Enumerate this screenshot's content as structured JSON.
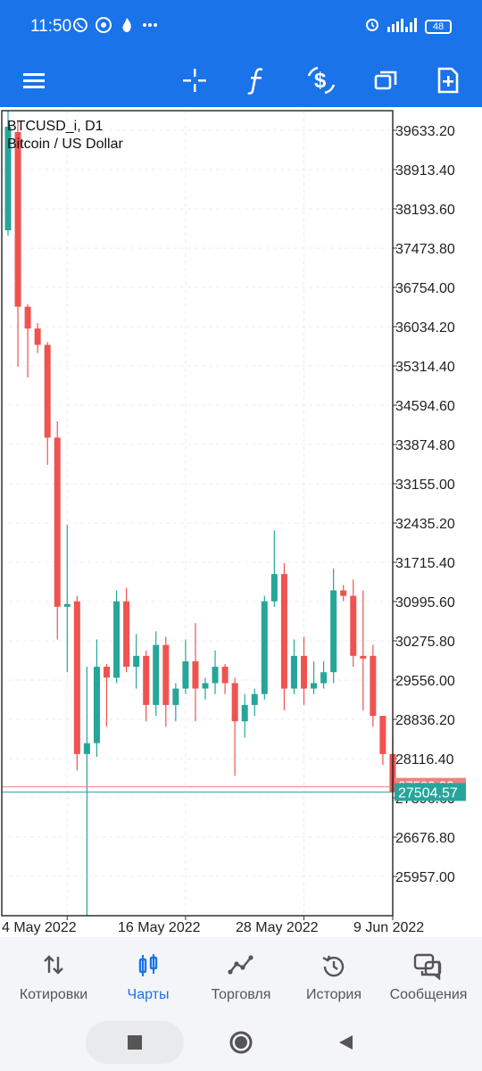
{
  "status_bar": {
    "time": "11:50",
    "battery": "48",
    "icons": [
      "viber-icon",
      "chrome-icon",
      "flame-icon",
      "more-dots-icon",
      "alarm-icon",
      "signal-icon",
      "battery-icon"
    ]
  },
  "toolbar": {
    "icons": [
      "menu-icon",
      "crosshair-icon",
      "indicators-f-icon",
      "trade-dollar-icon",
      "windows-icon",
      "new-order-icon"
    ]
  },
  "chart": {
    "symbol": "BTCUSD_i, D1",
    "description": "Bitcoin / US Dollar",
    "current_price": "27504.57",
    "bid_line_label": "27599.33"
  },
  "chart_data": {
    "type": "candlestick",
    "title": "BTCUSD_i, D1",
    "subtitle": "Bitcoin / US Dollar",
    "y_ticks": [
      "39633.20",
      "38913.40",
      "38193.60",
      "37473.80",
      "36754.00",
      "36034.20",
      "35314.40",
      "34594.60",
      "33874.80",
      "33155.00",
      "32435.20",
      "31715.40",
      "30995.60",
      "30275.80",
      "29556.00",
      "28836.20",
      "28116.40",
      "27396.60",
      "26676.80",
      "25957.00"
    ],
    "x_ticks": [
      "4 May 2022",
      "16 May 2022",
      "28 May 2022",
      "9 Jun 2022"
    ],
    "ylim": [
      25500,
      39950
    ],
    "candles": [
      {
        "o": 37800,
        "h": 40000,
        "l": 37700,
        "c": 39700
      },
      {
        "o": 39600,
        "h": 39800,
        "l": 35300,
        "c": 36400
      },
      {
        "o": 36400,
        "h": 36450,
        "l": 35100,
        "c": 36000
      },
      {
        "o": 36000,
        "h": 36100,
        "l": 35550,
        "c": 35700
      },
      {
        "o": 35700,
        "h": 35750,
        "l": 33500,
        "c": 34000
      },
      {
        "o": 34000,
        "h": 34300,
        "l": 30300,
        "c": 30900
      },
      {
        "o": 30900,
        "h": 32400,
        "l": 29700,
        "c": 30950
      },
      {
        "o": 31000,
        "h": 31100,
        "l": 27900,
        "c": 28200
      },
      {
        "o": 28200,
        "h": 29800,
        "l": 25200,
        "c": 28400
      },
      {
        "o": 28400,
        "h": 30300,
        "l": 28150,
        "c": 29800
      },
      {
        "o": 29800,
        "h": 29850,
        "l": 28700,
        "c": 29600
      },
      {
        "o": 29600,
        "h": 31200,
        "l": 29500,
        "c": 31000
      },
      {
        "o": 31000,
        "h": 31250,
        "l": 29700,
        "c": 29800
      },
      {
        "o": 29800,
        "h": 30400,
        "l": 29400,
        "c": 30000
      },
      {
        "o": 30000,
        "h": 30100,
        "l": 28800,
        "c": 29100
      },
      {
        "o": 29100,
        "h": 30450,
        "l": 28900,
        "c": 30200
      },
      {
        "o": 30200,
        "h": 30350,
        "l": 28700,
        "c": 29100
      },
      {
        "o": 29100,
        "h": 29500,
        "l": 28800,
        "c": 29400
      },
      {
        "o": 29400,
        "h": 30300,
        "l": 29300,
        "c": 29900
      },
      {
        "o": 29900,
        "h": 30600,
        "l": 28800,
        "c": 29400
      },
      {
        "o": 29400,
        "h": 29600,
        "l": 29200,
        "c": 29500
      },
      {
        "o": 29500,
        "h": 30100,
        "l": 29300,
        "c": 29800
      },
      {
        "o": 29800,
        "h": 29850,
        "l": 29300,
        "c": 29500
      },
      {
        "o": 29500,
        "h": 29600,
        "l": 27800,
        "c": 28800
      },
      {
        "o": 28800,
        "h": 29300,
        "l": 28500,
        "c": 29100
      },
      {
        "o": 29100,
        "h": 29400,
        "l": 28900,
        "c": 29300
      },
      {
        "o": 29300,
        "h": 31100,
        "l": 29200,
        "c": 31000
      },
      {
        "o": 31000,
        "h": 32300,
        "l": 30900,
        "c": 31500
      },
      {
        "o": 31500,
        "h": 31700,
        "l": 29000,
        "c": 29400
      },
      {
        "o": 29400,
        "h": 30300,
        "l": 29300,
        "c": 30000
      },
      {
        "o": 30000,
        "h": 30350,
        "l": 29100,
        "c": 29400
      },
      {
        "o": 29400,
        "h": 29900,
        "l": 29300,
        "c": 29500
      },
      {
        "o": 29500,
        "h": 29900,
        "l": 29400,
        "c": 29700
      },
      {
        "o": 29700,
        "h": 31600,
        "l": 29500,
        "c": 31200
      },
      {
        "o": 31200,
        "h": 31300,
        "l": 31000,
        "c": 31100
      },
      {
        "o": 31100,
        "h": 31400,
        "l": 29800,
        "c": 30000
      },
      {
        "o": 30000,
        "h": 31200,
        "l": 29000,
        "c": 29950
      },
      {
        "o": 30000,
        "h": 30200,
        "l": 28700,
        "c": 28900
      },
      {
        "o": 28900,
        "h": 28900,
        "l": 28000,
        "c": 28200
      },
      {
        "o": 28200,
        "h": 28500,
        "l": 27300,
        "c": 27500
      }
    ]
  },
  "bottom_nav": [
    {
      "label": "Котировки",
      "icon": "quotes-arrows-icon",
      "active": false
    },
    {
      "label": "Чарты",
      "icon": "charts-candles-icon",
      "active": true
    },
    {
      "label": "Торговля",
      "icon": "trade-line-icon",
      "active": false
    },
    {
      "label": "История",
      "icon": "history-clock-icon",
      "active": false
    },
    {
      "label": "Сообщения",
      "icon": "messages-chat-icon",
      "active": false
    }
  ],
  "colors": {
    "bull": "#26a69a",
    "bear": "#ef5350",
    "accent": "#1a73e8",
    "current_price_bg": "#26a69a",
    "bid_line": "#ef8080"
  }
}
